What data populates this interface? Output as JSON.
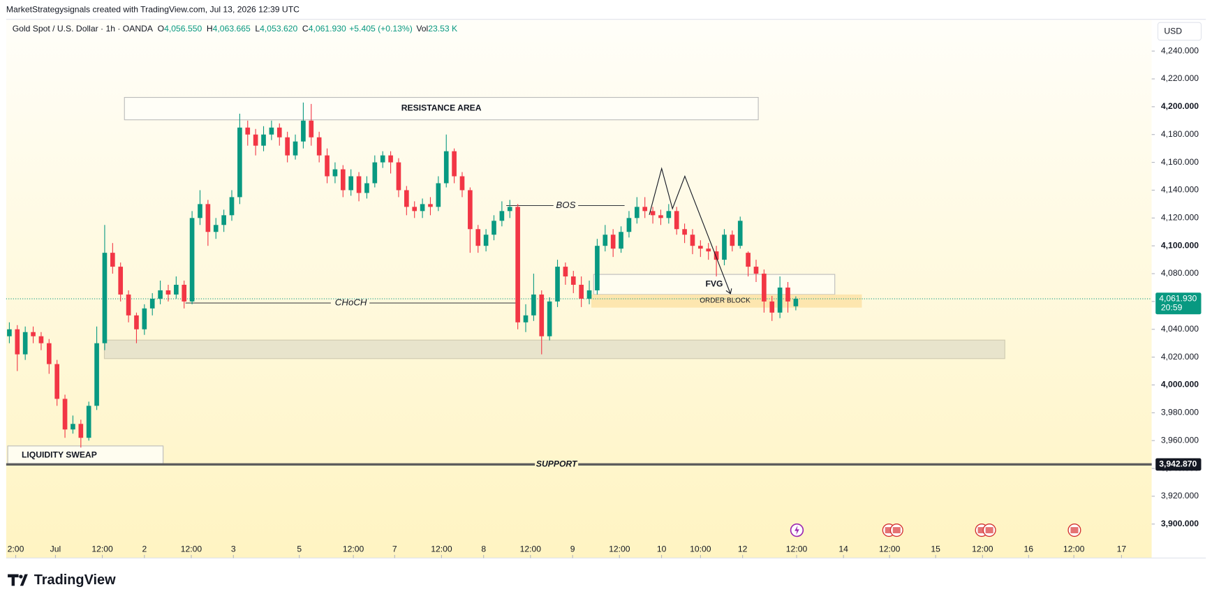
{
  "watermark": "MarketStrategysignals created with TradingView.com, Jul 13, 2026 12:39 UTC",
  "brand": "TradingView",
  "chart_data": {
    "type": "candlestick",
    "symbol": "Gold Spot / U.S. Dollar · 1h · OANDA",
    "legend": [
      {
        "key": "O",
        "value": "4,056.550"
      },
      {
        "key": "H",
        "value": "4,063.665"
      },
      {
        "key": "L",
        "value": "4,053.620"
      },
      {
        "key": "C",
        "value": "4,061.930"
      }
    ],
    "change": "+5.405 (+0.13%)",
    "volume": {
      "key": "Vol",
      "value": "23.53 K"
    },
    "currency": "USD",
    "up_color": "#089981",
    "down_color": "#f23645",
    "open": [
      4035,
      4040,
      4022,
      4038,
      4035,
      4030,
      4015,
      3990,
      3968,
      3972,
      3962,
      3985,
      4030,
      4095,
      4085,
      4065,
      4050,
      4040,
      4055,
      4062,
      4068,
      4065,
      4072,
      4060,
      4120,
      4130,
      4110,
      4115,
      4122,
      4135,
      4185,
      4180,
      4172,
      4180,
      4185,
      4178,
      4165,
      4175,
      4190,
      4178,
      4165,
      4150,
      4155,
      4140,
      4150,
      4138,
      4145,
      4160,
      4165,
      4160,
      4140,
      4128,
      4125,
      4130,
      4128,
      4145,
      4168,
      4150,
      4140,
      4112,
      4100,
      4108,
      4118,
      4125,
      4128,
      4045,
      4050,
      4065,
      4035,
      4060,
      4085,
      4078,
      4072,
      4062,
      4068,
      4100,
      4108,
      4098,
      4110,
      4120,
      4128,
      4125,
      4122,
      4120,
      4125,
      4112,
      4108,
      4100,
      4098,
      4096,
      4090,
      4108,
      4100,
      4095,
      4085,
      4080,
      4060,
      4052,
      4070,
      4056.55
    ],
    "high": [
      4045,
      4043,
      4042,
      4042,
      4038,
      4033,
      4018,
      3993,
      3978,
      3975,
      3988,
      4042,
      4115,
      4102,
      4088,
      4068,
      4052,
      4058,
      4066,
      4075,
      4072,
      4078,
      4075,
      4125,
      4140,
      4133,
      4120,
      4126,
      4140,
      4195,
      4190,
      4184,
      4186,
      4190,
      4188,
      4182,
      4180,
      4203,
      4202,
      4182,
      4170,
      4160,
      4158,
      4155,
      4153,
      4150,
      4165,
      4168,
      4168,
      4163,
      4143,
      4132,
      4134,
      4135,
      4150,
      4180,
      4170,
      4153,
      4142,
      4115,
      4112,
      4122,
      4132,
      4133,
      4130,
      4058,
      4080,
      4068,
      4063,
      4090,
      4088,
      4082,
      4078,
      4075,
      4105,
      4115,
      4112,
      4114,
      4125,
      4135,
      4135,
      4128,
      4126,
      4130,
      4128,
      4116,
      4112,
      4104,
      4102,
      4100,
      4112,
      4111,
      4121,
      4096,
      4090,
      4083,
      4064,
      4078,
      4074,
      4063.665
    ],
    "low": [
      4030,
      4010,
      4018,
      4030,
      4025,
      4008,
      3985,
      3962,
      3965,
      3955,
      3960,
      3982,
      4025,
      4080,
      4060,
      4045,
      4030,
      4036,
      4050,
      4058,
      4060,
      4062,
      4055,
      4058,
      4115,
      4100,
      4105,
      4110,
      4118,
      4130,
      4172,
      4165,
      4168,
      4176,
      4172,
      4160,
      4162,
      4170,
      4172,
      4160,
      4145,
      4145,
      4135,
      4136,
      4132,
      4134,
      4142,
      4156,
      4152,
      4135,
      4122,
      4120,
      4120,
      4122,
      4125,
      4142,
      4145,
      4135,
      4095,
      4095,
      4096,
      4104,
      4114,
      4120,
      4040,
      4038,
      4046,
      4022,
      4032,
      4056,
      4072,
      4066,
      4056,
      4058,
      4065,
      4096,
      4092,
      4095,
      4106,
      4116,
      4120,
      4116,
      4115,
      4116,
      4108,
      4102,
      4094,
      4092,
      4090,
      4078,
      4086,
      4096,
      4098,
      4078,
      4074,
      4052,
      4046,
      4048,
      4052,
      4053.62
    ],
    "close": [
      4040,
      4022,
      4038,
      4035,
      4030,
      4015,
      3990,
      3968,
      3972,
      3962,
      3985,
      4030,
      4095,
      4085,
      4065,
      4050,
      4040,
      4055,
      4062,
      4068,
      4065,
      4072,
      4060,
      4120,
      4130,
      4110,
      4115,
      4122,
      4135,
      4185,
      4180,
      4172,
      4180,
      4185,
      4178,
      4165,
      4175,
      4190,
      4178,
      4165,
      4150,
      4155,
      4140,
      4150,
      4138,
      4145,
      4160,
      4165,
      4160,
      4140,
      4128,
      4125,
      4130,
      4128,
      4145,
      4168,
      4150,
      4140,
      4112,
      4100,
      4108,
      4118,
      4125,
      4128,
      4045,
      4050,
      4065,
      4035,
      4060,
      4085,
      4078,
      4072,
      4062,
      4068,
      4100,
      4108,
      4098,
      4110,
      4120,
      4128,
      4125,
      4122,
      4120,
      4125,
      4112,
      4108,
      4100,
      4098,
      4096,
      4090,
      4108,
      4100,
      4118,
      4085,
      4080,
      4060,
      4052,
      4070,
      4060,
      4061.93
    ],
    "xlim": [
      -0.4,
      143.8
    ],
    "xticks": [
      {
        "value": 0.8,
        "label": "2:00"
      },
      {
        "value": 5.8,
        "label": "Jul"
      },
      {
        "value": 11.7,
        "label": "12:00"
      },
      {
        "value": 17,
        "label": "2"
      },
      {
        "value": 22.9,
        "label": "12:00"
      },
      {
        "value": 28.2,
        "label": "3"
      },
      {
        "value": 36.5,
        "label": "5"
      },
      {
        "value": 43.3,
        "label": "12:00"
      },
      {
        "value": 48.5,
        "label": "7"
      },
      {
        "value": 54.4,
        "label": "12:00"
      },
      {
        "value": 59.7,
        "label": "8"
      },
      {
        "value": 65.6,
        "label": "12:00"
      },
      {
        "value": 70.9,
        "label": "9"
      },
      {
        "value": 76.8,
        "label": "12:00"
      },
      {
        "value": 82.1,
        "label": "10"
      },
      {
        "value": 87,
        "label": "10:00"
      },
      {
        "value": 92.3,
        "label": "12"
      },
      {
        "value": 99.1,
        "label": "12:00"
      },
      {
        "value": 105,
        "label": "14"
      },
      {
        "value": 110.8,
        "label": "12:00"
      },
      {
        "value": 116.6,
        "label": "15"
      },
      {
        "value": 122.5,
        "label": "12:00"
      },
      {
        "value": 128.3,
        "label": "16"
      },
      {
        "value": 134,
        "label": "12:00"
      },
      {
        "value": 140,
        "label": "17"
      }
    ],
    "ylim": [
      3875.6,
      4262.8
    ],
    "yticks": [
      {
        "value": 3900,
        "label": "3,900.000"
      },
      {
        "value": 3920,
        "label": "3,920.000"
      },
      {
        "value": 3940,
        "label": "3,940.000"
      },
      {
        "value": 3960,
        "label": "3,960.000"
      },
      {
        "value": 3980,
        "label": "3,980.000"
      },
      {
        "value": 4000,
        "label": "4,000.000"
      },
      {
        "value": 4020,
        "label": "4,020.000"
      },
      {
        "value": 4040,
        "label": "4,040.000"
      },
      {
        "value": 4060,
        "label": "4,060.000"
      },
      {
        "value": 4080,
        "label": "4,080.000"
      },
      {
        "value": 4100,
        "label": "4,100.000"
      },
      {
        "value": 4120,
        "label": "4,120.000"
      },
      {
        "value": 4140,
        "label": "4,140.000"
      },
      {
        "value": 4160,
        "label": "4,160.000"
      },
      {
        "value": 4180,
        "label": "4,180.000"
      },
      {
        "value": 4200,
        "label": "4,200.000"
      },
      {
        "value": 4220,
        "label": "4,220.000"
      },
      {
        "value": 4240,
        "label": "4,240.000"
      }
    ],
    "last_price": {
      "value": 4061.93,
      "label": "4,061.930",
      "countdown": "20:59"
    },
    "support": {
      "name": "SUPPORT",
      "value": 3942.87,
      "label": "3,942.870"
    },
    "annotations": {
      "resistance": "RESISTANCE AREA",
      "bos": "BOS",
      "choch": "CHoCH",
      "fvg": "FVG",
      "order_block": "ORDER BLOCK",
      "liquidity": "LIQUIDITY SWEAP"
    }
  }
}
